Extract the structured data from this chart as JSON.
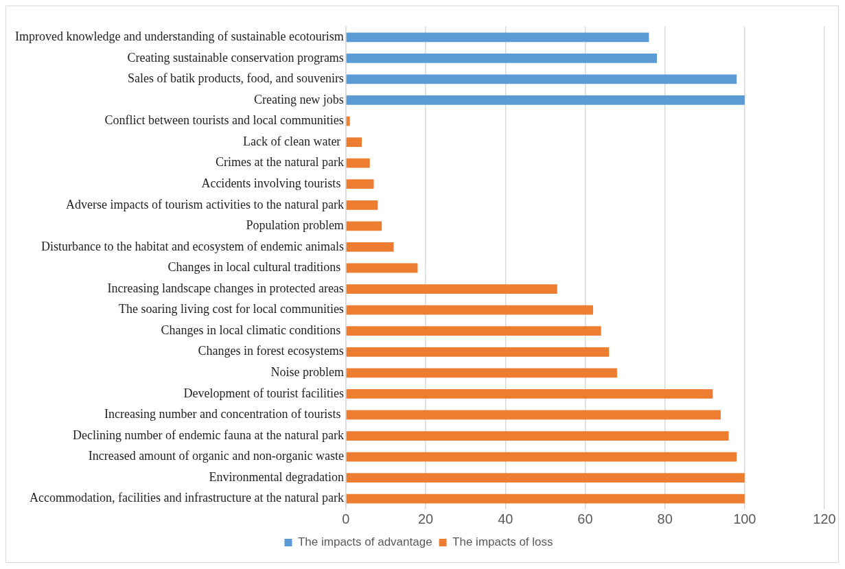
{
  "chart_data": {
    "type": "bar",
    "orientation": "horizontal",
    "categories": [
      "Improved knowledge and understanding of sustainable ecotourism",
      "Creating sustainable conservation programs",
      "Sales of batik products, food, and souvenirs",
      "Creating new jobs",
      "Conflict between tourists and local communities",
      "Lack of clean water ",
      "Crimes at the natural park",
      "Accidents involving tourists ",
      "Adverse impacts of tourism activities to the natural park",
      "Population problem",
      "Disturbance to the habitat and ecosystem of endemic animals",
      "Changes in local cultural traditions ",
      "Increasing landscape changes in protected areas",
      "The soaring living cost for local communities",
      "Changes in local climatic conditions ",
      "Changes in forest ecosystems",
      "Noise problem",
      "Development of tourist facilities",
      "Increasing number and concentration of tourists ",
      "Declining number of endemic fauna at the natural park",
      "Increased amount of organic and non-organic waste",
      "Environmental degradation",
      "Accommodation, facilities and infrastructure at the natural park"
    ],
    "series": [
      {
        "name": "The impacts of advantage",
        "color": "#5b9bd5",
        "values": [
          76,
          78,
          98,
          100,
          null,
          null,
          null,
          null,
          null,
          null,
          null,
          null,
          null,
          null,
          null,
          null,
          null,
          null,
          null,
          null,
          null,
          null,
          null
        ]
      },
      {
        "name": "The impacts of loss",
        "color": "#ed7d31",
        "values": [
          null,
          null,
          null,
          null,
          1,
          4,
          6,
          7,
          8,
          9,
          12,
          18,
          53,
          62,
          64,
          66,
          68,
          92,
          94,
          96,
          98,
          100,
          100
        ]
      }
    ],
    "xlim": [
      0,
      120
    ],
    "xticks": [
      0,
      20,
      40,
      60,
      80,
      100,
      120
    ],
    "grid": "x",
    "legend": "bottom"
  }
}
